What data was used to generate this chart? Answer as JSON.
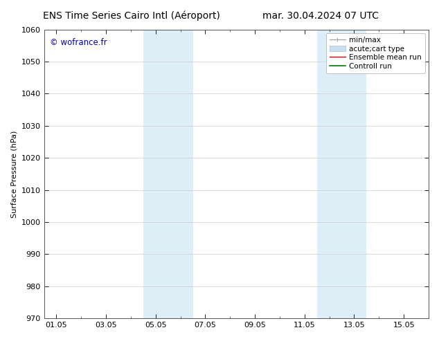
{
  "title_left": "ENS Time Series Cairo Intl (Aéroport)",
  "title_right": "mar. 30.04.2024 07 UTC",
  "ylabel": "Surface Pressure (hPa)",
  "ylim": [
    970,
    1060
  ],
  "yticks": [
    970,
    980,
    990,
    1000,
    1010,
    1020,
    1030,
    1040,
    1050,
    1060
  ],
  "xtick_labels": [
    "01.05",
    "03.05",
    "05.05",
    "07.05",
    "09.05",
    "11.05",
    "13.05",
    "15.05"
  ],
  "xtick_positions": [
    0,
    2,
    4,
    6,
    8,
    10,
    12,
    14
  ],
  "xlim": [
    -0.5,
    15.0
  ],
  "shaded_regions": [
    {
      "x_start": 3.5,
      "x_end": 4.5,
      "color": "#ddeef7"
    },
    {
      "x_start": 4.5,
      "x_end": 5.5,
      "color": "#ddeef7"
    },
    {
      "x_start": 10.5,
      "x_end": 11.5,
      "color": "#ddeef7"
    },
    {
      "x_start": 11.5,
      "x_end": 12.5,
      "color": "#ddeef7"
    }
  ],
  "watermark_text": "© wofrance.fr",
  "watermark_color": "#0000bb",
  "legend_entries": [
    {
      "label": "min/max",
      "color": "#aaaaaa",
      "lw": 1.0,
      "type": "line_with_caps"
    },
    {
      "label": "acute;cart type",
      "color": "#c8dff0",
      "lw": 5,
      "type": "bar"
    },
    {
      "label": "Ensemble mean run",
      "color": "#dd0000",
      "lw": 1.0,
      "type": "line"
    },
    {
      "label": "Controll run",
      "color": "#007700",
      "lw": 1.2,
      "type": "line"
    }
  ],
  "bg_color": "#ffffff",
  "grid_color": "#cccccc",
  "title_fontsize": 10,
  "axis_fontsize": 8,
  "tick_fontsize": 8,
  "legend_fontsize": 7.5
}
